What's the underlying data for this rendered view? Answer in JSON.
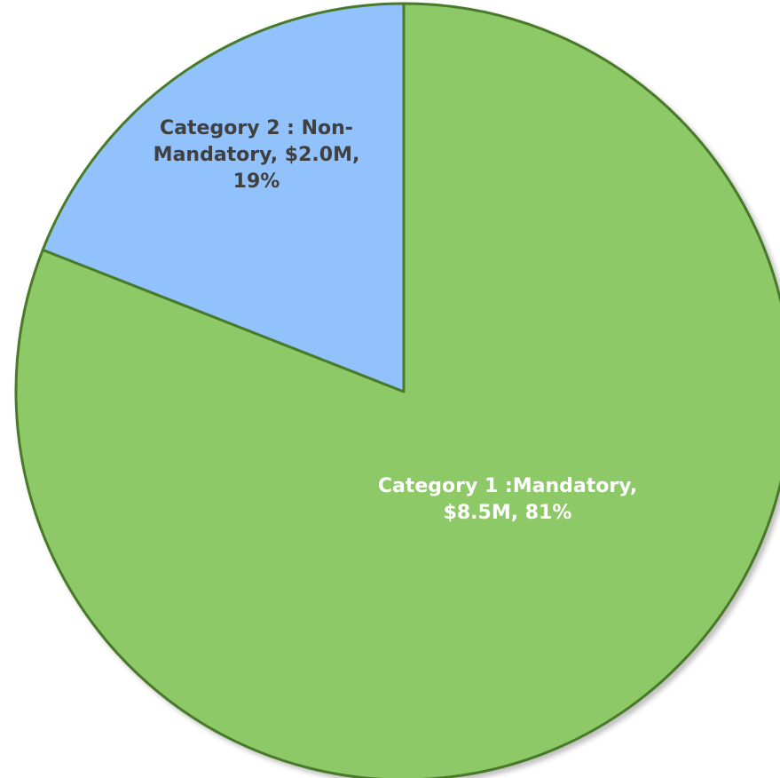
{
  "chart_data": {
    "type": "pie",
    "title": "",
    "slices": [
      {
        "name": "Category 1 :Mandatory",
        "value": 8.5,
        "value_label": "$8.5M",
        "percent": 81,
        "color": "#8dc966",
        "stroke": "#4a7a2c",
        "label_color": "#ffffff",
        "label_lines": [
          "Category 1 :Mandatory,",
          "$8.5M, 81%"
        ]
      },
      {
        "name": "Category 2 : Non-Mandatory",
        "value": 2.0,
        "value_label": "$2.0M",
        "percent": 19,
        "color": "#92c2fc",
        "stroke": "#4a7a2c",
        "label_color": "#404040",
        "label_lines": [
          "Category 2 : Non-",
          "Mandatory, $2.0M,",
          "19%"
        ]
      }
    ],
    "legend": "none"
  }
}
